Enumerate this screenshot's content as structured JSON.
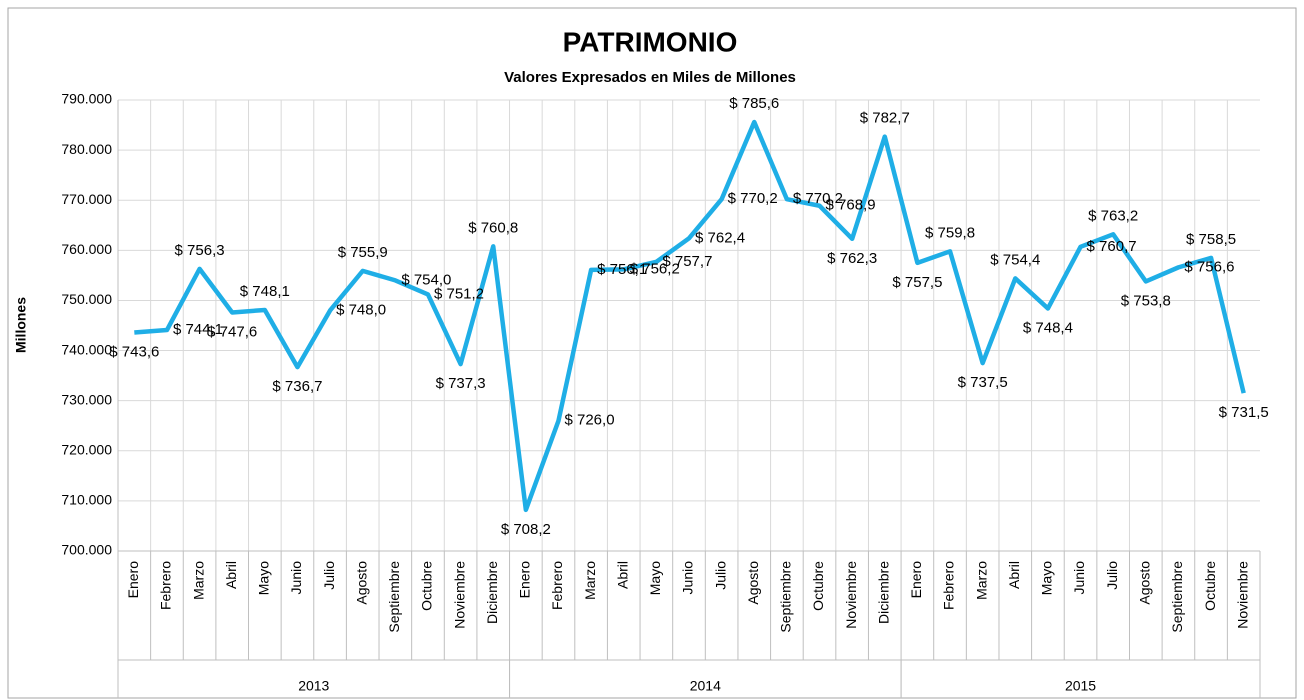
{
  "chart_data": {
    "type": "line",
    "title": "PATRIMONIO",
    "subtitle": "Valores Expresados en Miles de Millones",
    "y_label": "Millones",
    "groups": [
      {
        "name": "2013",
        "categories": [
          "Enero",
          "Febrero",
          "Marzo",
          "Abril",
          "Mayo",
          "Junio",
          "Julio",
          "Agosto",
          "Septiembre",
          "Octubre",
          "Noviembre",
          "Diciembre"
        ]
      },
      {
        "name": "2014",
        "categories": [
          "Enero",
          "Febrero",
          "Marzo",
          "Abril",
          "Mayo",
          "Junio",
          "Julio",
          "Agosto",
          "Septiembre",
          "Octubre",
          "Noviembre",
          "Diciembre"
        ]
      },
      {
        "name": "2015",
        "categories": [
          "Enero",
          "Febrero",
          "Marzo",
          "Abril",
          "Mayo",
          "Junio",
          "Julio",
          "Agosto",
          "Septiembre",
          "Octubre",
          "Noviembre"
        ]
      }
    ],
    "series": [
      {
        "name": "Patrimonio",
        "color": "#1faee6",
        "values": [
          743600,
          744100,
          756300,
          747600,
          748100,
          736700,
          748000,
          755900,
          754000,
          751200,
          737300,
          760800,
          708200,
          726000,
          756100,
          756200,
          757700,
          762400,
          770200,
          785600,
          770200,
          768900,
          762300,
          782700,
          757500,
          759800,
          737500,
          754400,
          748400,
          760700,
          763200,
          753800,
          756600,
          758500,
          731500
        ],
        "value_labels": [
          "$ 743,6",
          "$ 744,1",
          "$ 756,3",
          "$ 747,6",
          "$ 748,1",
          "$ 736,7",
          "$ 748,0",
          "$ 755,9",
          "$ 754,0",
          "$ 751,2",
          "$ 737,3",
          "$ 760,8",
          "$ 708,2",
          "$ 726,0",
          "$ 756,1",
          "$ 756,2",
          "$ 757,7",
          "$ 762,4",
          "$ 770,2",
          "$ 785,6",
          "$ 770,2",
          "$ 768,9",
          "$ 762,3",
          "$ 782,7",
          "$ 757,5",
          "$ 759,8",
          "$ 737,5",
          "$ 754,4",
          "$ 748,4",
          "$ 760,7",
          "$ 763,2",
          "$ 753,8",
          "$ 756,6",
          "$ 758,5",
          "$ 731,5"
        ]
      }
    ],
    "ylim": [
      700000,
      790000
    ],
    "yticks": [
      {
        "value": 700000,
        "label": "700.000"
      },
      {
        "value": 710000,
        "label": "710.000"
      },
      {
        "value": 720000,
        "label": "720.000"
      },
      {
        "value": 730000,
        "label": "730.000"
      },
      {
        "value": 740000,
        "label": "740.000"
      },
      {
        "value": 750000,
        "label": "750.000"
      },
      {
        "value": 760000,
        "label": "760.000"
      },
      {
        "value": 770000,
        "label": "770.000"
      },
      {
        "value": 780000,
        "label": "780.000"
      },
      {
        "value": 790000,
        "label": "790.000"
      }
    ],
    "grid": true
  }
}
